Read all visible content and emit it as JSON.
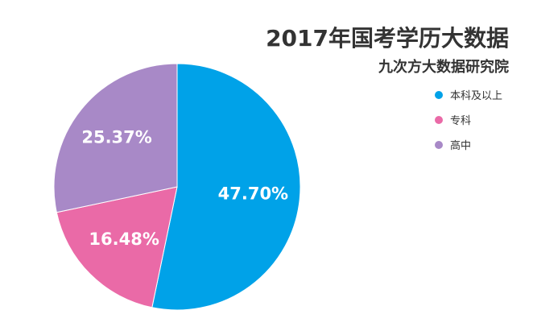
{
  "chart_data": {
    "type": "pie",
    "title": "2017年国考学历大数据",
    "subtitle": "九次方大数据研究院",
    "legend_position": "right",
    "series": [
      {
        "name": "本科及以上",
        "label": "47.70%",
        "value": 47.7,
        "color": "#00a2e8"
      },
      {
        "name": "专科",
        "label": "16.48%",
        "value": 16.48,
        "color": "#ea6aa7"
      },
      {
        "name": "高中",
        "label": "25.37%",
        "value": 25.37,
        "color": "#a889c7"
      }
    ]
  }
}
